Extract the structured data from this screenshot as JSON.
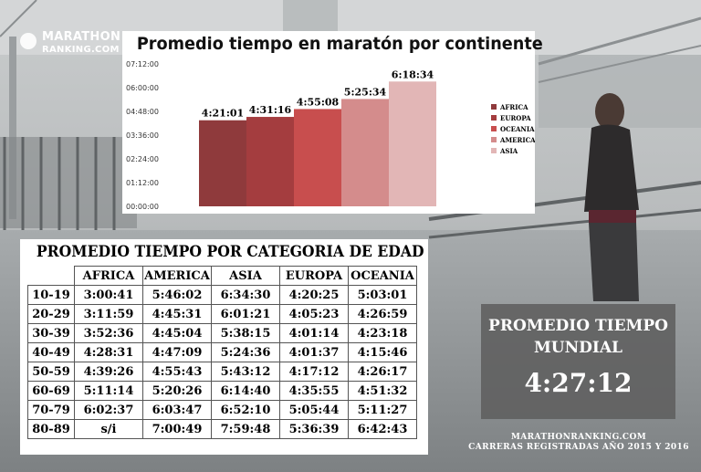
{
  "logo": {
    "line1": "MARATHON",
    "line2": "RANKING.COM"
  },
  "chart_data": {
    "type": "bar",
    "title": "Promedio tiempo en maratón por continente",
    "categories": [
      "AFRICA",
      "EUROPA",
      "OCEANIA",
      "AMERICA",
      "ASIA"
    ],
    "values": [
      "4:21:01",
      "4:31:16",
      "4:55:08",
      "5:25:34",
      "6:18:34"
    ],
    "values_seconds": [
      15661,
      16276,
      17708,
      19534,
      22714
    ],
    "yticks": [
      "07:12:00",
      "06:00:00",
      "04:48:00",
      "03:36:00",
      "02:24:00",
      "01:12:00",
      "00:00:00"
    ],
    "ylim_seconds": [
      0,
      25920
    ],
    "colors": [
      "#8f3a3c",
      "#a43d3f",
      "#c84e4e",
      "#d48c8c",
      "#e2b6b6"
    ],
    "legend": "right",
    "grid": false
  },
  "table": {
    "title": "PROMEDIO TIEMPO POR CATEGORIA DE EDAD",
    "columns": [
      "AFRICA",
      "AMERICA",
      "ASIA",
      "EUROPA",
      "OCEANIA"
    ],
    "rows": [
      {
        "age": "10-19",
        "values": [
          "3:00:41",
          "5:46:02",
          "6:34:30",
          "4:20:25",
          "5:03:01"
        ]
      },
      {
        "age": "20-29",
        "values": [
          "3:11:59",
          "4:45:31",
          "6:01:21",
          "4:05:23",
          "4:26:59"
        ]
      },
      {
        "age": "30-39",
        "values": [
          "3:52:36",
          "4:45:04",
          "5:38:15",
          "4:01:14",
          "4:23:18"
        ]
      },
      {
        "age": "40-49",
        "values": [
          "4:28:31",
          "4:47:09",
          "5:24:36",
          "4:01:37",
          "4:15:46"
        ]
      },
      {
        "age": "50-59",
        "values": [
          "4:39:26",
          "4:55:43",
          "5:43:12",
          "4:17:12",
          "4:26:17"
        ]
      },
      {
        "age": "60-69",
        "values": [
          "5:11:14",
          "5:20:26",
          "6:14:40",
          "4:35:55",
          "4:51:32"
        ]
      },
      {
        "age": "70-79",
        "values": [
          "6:02:37",
          "6:03:47",
          "6:52:10",
          "5:05:44",
          "5:11:27"
        ]
      },
      {
        "age": "80-89",
        "values": [
          "s/i",
          "7:00:49",
          "7:59:48",
          "5:36:39",
          "6:42:43"
        ]
      }
    ]
  },
  "global": {
    "label": "PROMEDIO TIEMPO MUNDIAL",
    "value": "4:27:12"
  },
  "footer": {
    "line1": "MARATHONRANKING.COM",
    "line2": "CARRERAS REGISTRADAS AÑO 2015 Y 2016"
  }
}
